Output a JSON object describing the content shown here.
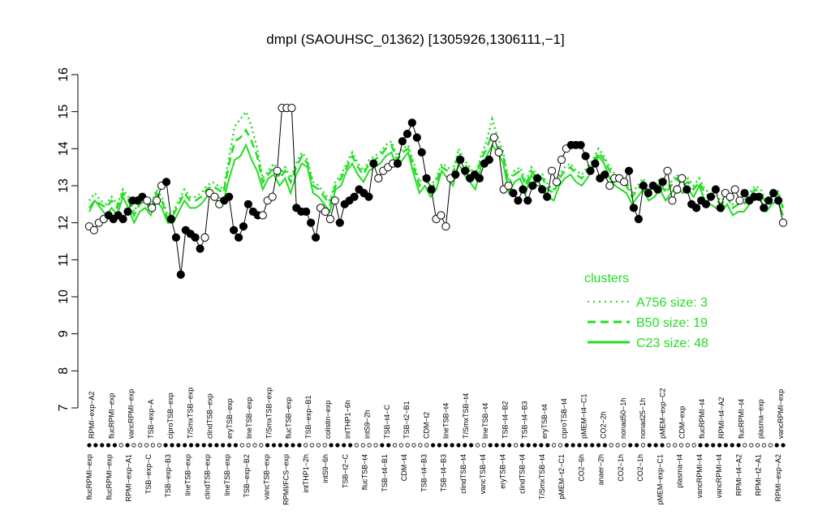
{
  "chart_data": {
    "type": "line",
    "title": "dmpI (SAOUHSC_01362) [1305926,1306111,−1]",
    "xlabel": "",
    "ylabel": "",
    "ylim": [
      7,
      16
    ],
    "yticks": [
      "7",
      "8",
      "9",
      "10",
      "11",
      "12",
      "13",
      "14",
      "15",
      "16"
    ],
    "grid": false,
    "legend": {
      "title": "clusters",
      "placement": "right",
      "entries": [
        {
          "label": "A756 size: 3",
          "style": "dotted"
        },
        {
          "label": "B50 size: 19",
          "style": "dashed"
        },
        {
          "label": "C23 size: 48",
          "style": "solid"
        }
      ]
    },
    "colors": {
      "clusters": "#22dd22",
      "points": "#000000"
    },
    "x_labels_top": [
      "RPMI−exp−A2",
      "flucRPMI−exp",
      "vancRPMI−exp",
      "TSB−exp−A",
      "ciproTSB−exp",
      "T/SmxTSB−exp",
      "clindTSB−exp",
      "eryTSB−exp",
      "lineTSB−exp",
      "T/SmxTSB−exp",
      "flucTSB−exp",
      "TSB−exp−B1",
      "colistin−exp",
      "intTHP1−6h",
      "intS9−2h",
      "TSB−t4−C",
      "TSB−t2−B1",
      "CDM−t2",
      "lineTSB−t4",
      "T/SmxTSB−t4",
      "lineTSB−t4",
      "TSB−t4−B2",
      "TSB−t4−B3",
      "eryTSB−t4",
      "ciproTSB−t4",
      "pMEM−t4−C1",
      "CO2−2h",
      "nonad50−1h",
      "nonad25−1h",
      "pMEM−exp−C2",
      "CDM−exp",
      "flucRPMI−t4",
      "RPMI−t4−A2",
      "flucRPMI−t4",
      "plasma−exp",
      "vancRPMI−exp"
    ],
    "x_labels_bottom": [
      "flucRPMI−exp",
      "flucRPMI−exp",
      "RPMI−exp−A1",
      "TSB−exp−C",
      "TSB−exp−B3",
      "lineTSB−exp",
      "clindTSB−exp",
      "lineTSB−exp",
      "TSB−exp−B2",
      "vancTSB−exp",
      "RPMI/FCS−exp",
      "intTHP1−2h",
      "intS9−6h",
      "TSB−t2−C",
      "flucTSB−t4",
      "TSB−t4−B1",
      "CDM−t4",
      "TSB−t4−B3",
      "TSB−t4−B3",
      "clindTSB−t4",
      "vancTSB−t4",
      "eryTSB−t4",
      "clindTSB−t4",
      "T/SmxTSB−t4",
      "pMEM−t2−C1",
      "CO2−6h",
      "anaer−2h",
      "CO2−1h",
      "CO2−1h",
      "pMEM−exp−C1",
      "plasma−t4",
      "vancRPMI−t4",
      "vancRPMI−t4",
      "RPMI−t4−A2",
      "RPMI−t2−A1",
      "RPMI−exp−A2"
    ],
    "series": [
      {
        "name": "C23 size: 48",
        "style": "solid",
        "values": [
          12.3,
          12.6,
          12.4,
          12.2,
          12.4,
          12.2,
          12.7,
          12.4,
          12.0,
          12.3,
          12.4,
          12.2,
          12.6,
          12.4,
          12.0,
          12.0,
          12.3,
          12.6,
          12.4,
          12.4,
          12.5,
          12.7,
          12.8,
          12.7,
          12.6,
          13.2,
          13.7,
          13.8,
          14.1,
          13.7,
          13.4,
          12.9,
          13.2,
          13.3,
          13.0,
          13.2,
          12.8,
          13.3,
          13.6,
          13.5,
          12.8,
          12.7,
          12.5,
          12.3,
          12.9,
          13.0,
          13.4,
          13.6,
          13.3,
          13.1,
          13.4,
          13.5,
          13.6,
          13.8,
          13.9,
          13.5,
          13.7,
          13.9,
          13.3,
          12.8,
          13.0,
          12.7,
          12.9,
          13.4,
          13.2,
          13.0,
          13.6,
          13.3,
          13.1,
          12.9,
          13.5,
          13.8,
          14.1,
          13.9,
          13.6,
          12.8,
          13.1,
          13.2,
          12.8,
          13.3,
          13.0,
          13.0,
          12.7,
          12.6,
          13.0,
          13.2,
          13.3,
          13.1,
          13.0,
          13.2,
          13.5,
          13.8,
          13.6,
          13.2,
          13.0,
          12.9,
          12.8,
          12.5,
          12.7,
          12.9,
          12.6,
          12.7,
          12.9,
          12.6,
          12.8,
          13.0,
          12.8,
          12.9,
          12.7,
          13.0,
          12.6,
          12.5,
          12.4,
          12.3,
          12.5,
          12.2,
          12.3,
          12.3,
          12.5,
          12.7,
          12.6,
          12.3,
          12.5,
          12.6,
          12.2
        ]
      },
      {
        "name": "B50 size: 19",
        "style": "dashed",
        "values": [
          12.4,
          12.6,
          12.5,
          12.4,
          12.6,
          12.4,
          12.8,
          12.6,
          12.2,
          12.5,
          12.6,
          12.3,
          12.8,
          12.6,
          12.1,
          12.2,
          12.5,
          12.8,
          12.6,
          12.6,
          12.7,
          12.9,
          13.0,
          12.9,
          12.8,
          13.6,
          14.2,
          14.3,
          14.5,
          14.2,
          13.8,
          13.1,
          13.3,
          13.5,
          13.2,
          13.4,
          13.1,
          13.5,
          13.8,
          13.6,
          13.0,
          12.9,
          12.7,
          12.5,
          13.0,
          13.2,
          13.5,
          13.8,
          13.5,
          13.3,
          13.6,
          13.7,
          13.8,
          14.0,
          14.1,
          13.7,
          13.9,
          14.0,
          13.5,
          13.0,
          13.2,
          12.9,
          13.1,
          13.5,
          13.4,
          13.3,
          13.9,
          13.6,
          13.4,
          13.2,
          13.7,
          14.0,
          14.4,
          14.1,
          13.8,
          13.0,
          13.3,
          13.4,
          13.0,
          13.4,
          13.2,
          13.2,
          12.9,
          12.8,
          13.2,
          13.4,
          13.5,
          13.3,
          13.2,
          13.4,
          13.6,
          13.9,
          13.7,
          13.4,
          13.2,
          13.1,
          13.0,
          12.7,
          12.9,
          13.1,
          12.8,
          12.9,
          13.1,
          12.8,
          13.0,
          13.2,
          13.0,
          13.1,
          12.9,
          13.1,
          12.8,
          12.7,
          12.6,
          12.5,
          12.7,
          12.4,
          12.5,
          12.5,
          12.7,
          12.9,
          12.8,
          12.5,
          12.7,
          12.8,
          12.4
        ]
      },
      {
        "name": "A756 size: 3",
        "style": "dotted",
        "values": [
          12.6,
          12.8,
          12.6,
          12.5,
          12.7,
          12.5,
          12.9,
          12.7,
          12.3,
          12.6,
          12.7,
          12.4,
          12.9,
          12.7,
          12.2,
          12.3,
          12.6,
          12.9,
          12.7,
          12.7,
          12.8,
          13.0,
          13.1,
          13.0,
          12.9,
          13.8,
          14.6,
          14.8,
          15.0,
          14.6,
          14.0,
          13.2,
          13.4,
          13.6,
          13.3,
          13.5,
          13.2,
          13.6,
          13.9,
          13.7,
          13.1,
          13.0,
          12.8,
          12.6,
          13.1,
          13.3,
          13.6,
          13.9,
          13.6,
          13.4,
          13.7,
          13.8,
          13.9,
          14.1,
          14.2,
          13.8,
          14.0,
          14.1,
          13.6,
          13.1,
          13.3,
          13.0,
          13.2,
          13.6,
          13.5,
          13.4,
          14.0,
          13.7,
          13.5,
          13.3,
          13.8,
          14.2,
          14.8,
          14.3,
          13.9,
          13.1,
          13.4,
          13.5,
          13.1,
          13.5,
          13.3,
          13.3,
          13.0,
          12.9,
          13.3,
          13.5,
          13.6,
          13.4,
          13.3,
          13.5,
          13.7,
          14.0,
          13.8,
          13.5,
          13.3,
          13.2,
          13.1,
          12.8,
          13.0,
          13.2,
          12.9,
          13.0,
          13.2,
          12.9,
          13.1,
          13.3,
          13.1,
          13.2,
          13.0,
          13.2,
          12.9,
          12.8,
          12.7,
          12.6,
          12.8,
          12.5,
          12.6,
          12.6,
          12.8,
          13.0,
          12.9,
          12.6,
          12.8,
          12.9,
          12.5
        ]
      },
      {
        "name": "",
        "style": "points",
        "values": [
          11.9,
          11.8,
          12.0,
          12.1,
          12.2,
          12.1,
          12.2,
          12.1,
          12.3,
          12.6,
          12.6,
          12.7,
          12.6,
          12.4,
          12.6,
          13.0,
          13.1,
          12.1,
          11.6,
          10.6,
          11.8,
          11.7,
          11.6,
          11.3,
          11.6,
          12.8,
          12.7,
          12.5,
          12.6,
          12.7,
          11.8,
          11.6,
          11.9,
          12.5,
          12.3,
          12.2,
          12.2,
          12.6,
          12.7,
          13.4,
          15.1,
          15.1,
          15.1,
          12.4,
          12.3,
          12.3,
          12.0,
          11.6,
          12.4,
          12.3,
          12.1,
          12.6,
          12.0,
          12.5,
          12.6,
          12.7,
          12.9,
          12.8,
          12.7,
          13.6,
          13.2,
          13.4,
          13.5,
          13.6,
          13.6,
          14.2,
          14.4,
          14.7,
          14.3,
          13.9,
          13.2,
          12.9,
          12.1,
          12.2,
          11.9,
          13.2,
          13.3,
          13.7,
          13.4,
          13.2,
          13.3,
          13.2,
          13.6,
          13.7,
          14.3,
          13.9,
          12.9,
          13.0,
          12.8,
          12.6,
          12.9,
          12.6,
          13.0,
          13.2,
          12.9,
          12.7,
          13.4,
          13.1,
          13.7,
          14.0,
          14.1,
          14.1,
          14.1,
          13.8,
          13.4,
          13.6,
          13.2,
          13.3,
          13.0,
          13.2,
          13.2,
          13.1,
          13.4,
          12.4,
          12.1,
          13.0,
          12.8,
          13.0,
          12.9,
          13.1,
          13.4,
          12.6,
          12.9,
          13.2,
          12.9,
          12.5,
          12.4,
          12.6,
          12.5,
          12.7,
          12.9,
          12.4,
          12.8,
          12.7,
          12.9,
          12.6,
          12.8,
          12.6,
          12.7,
          12.7,
          12.4,
          12.6,
          12.8,
          12.6,
          12.0
        ]
      }
    ],
    "rug": {
      "groups": [
        5,
        1,
        1,
        4,
        1,
        10,
        2,
        4,
        3,
        3,
        3,
        1,
        4,
        3,
        1,
        2,
        6,
        1,
        6,
        2,
        4,
        1,
        5,
        2,
        3,
        4,
        3,
        2,
        1,
        3,
        5,
        3,
        4,
        2,
        3,
        2
      ],
      "open_groups": [
        1,
        3,
        4,
        7,
        10,
        11,
        13,
        14,
        16,
        19,
        21,
        23,
        26,
        28,
        30,
        33,
        34
      ]
    }
  }
}
